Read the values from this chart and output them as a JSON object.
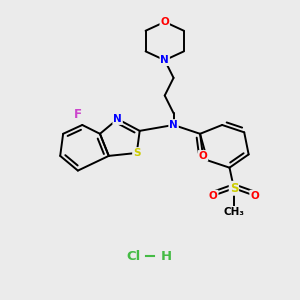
{
  "bg_color": "#ebebeb",
  "fig_size": [
    3.0,
    3.0
  ],
  "dpi": 100,
  "bond_color": "#000000",
  "bond_width": 1.4,
  "atom_colors": {
    "O": "#ff0000",
    "N": "#0000ff",
    "S": "#cccc00",
    "F": "#cc44cc",
    "C": "#000000",
    "Cl": "#44bb44",
    "H": "#000000"
  },
  "font_size": 7.5,
  "hcl_color": "#44bb44"
}
